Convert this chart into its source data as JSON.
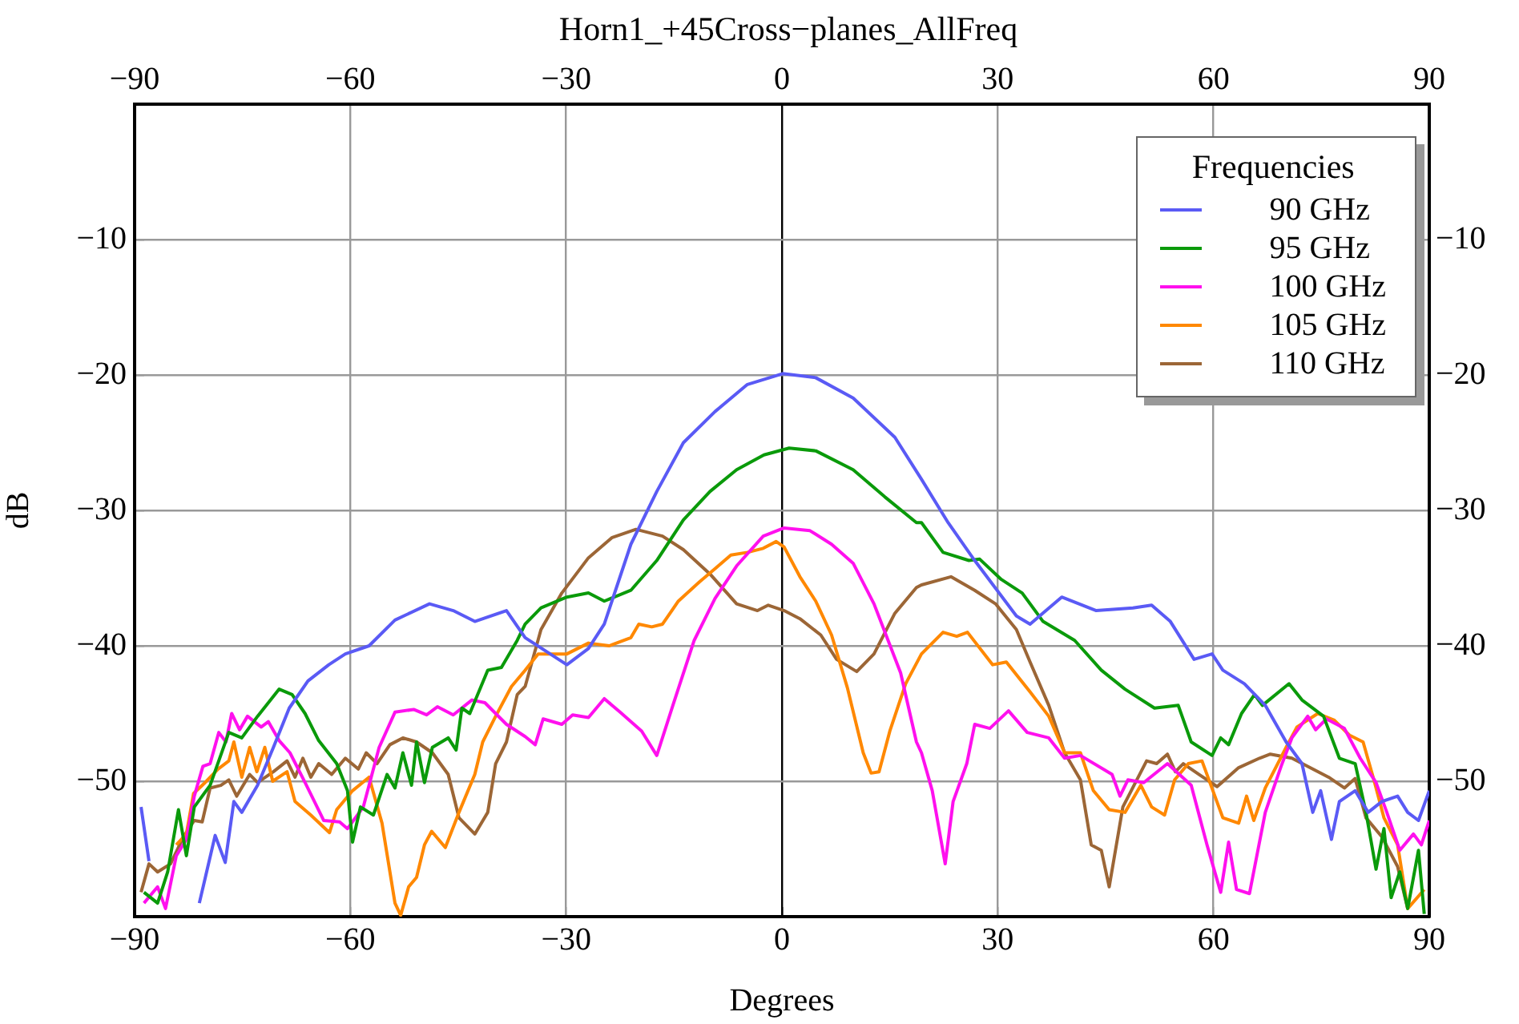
{
  "chart_data": {
    "type": "line",
    "title": "Horn1_+45Cross−planes_AllFreq",
    "xlabel": "Degrees",
    "ylabel": "dB",
    "legend_title": "Frequencies",
    "legend": "top right",
    "grid": true,
    "marker": "none",
    "xlim": [
      -90,
      90
    ],
    "xticks": [
      -90,
      -60,
      -30,
      0,
      30,
      60,
      90
    ],
    "x2lim": [
      -90,
      90
    ],
    "x2ticks": [
      -90,
      -60,
      -30,
      0,
      30,
      60,
      90
    ],
    "ylim": [
      -60,
      0
    ],
    "yticks": [
      -50,
      -40,
      -30,
      -20,
      -10
    ],
    "y2lim": [
      -60,
      0
    ],
    "y2ticks": [
      -50,
      -40,
      -30,
      -20,
      -10
    ],
    "series": [
      {
        "name": "90 GHz",
        "color": "#5a5af5",
        "x": [
          -89.1,
          -88.0,
          -85.0,
          -81.0,
          -78.8,
          -77.4,
          -76.2,
          -75.1,
          -72.9,
          -70.7,
          -68.5,
          -65.9,
          -63.0,
          -60.7,
          -57.4,
          -53.8,
          -49.0,
          -45.7,
          -42.7,
          -38.3,
          -35.7,
          -29.9,
          -26.9,
          -24.7,
          -21.0,
          -17.4,
          -13.7,
          -9.3,
          -4.8,
          0.1,
          4.7,
          9.9,
          15.7,
          19.4,
          23.1,
          26.8,
          32.6,
          34.5,
          38.9,
          43.7,
          48.8,
          51.4,
          54.0,
          57.3,
          59.8,
          61.3,
          64.3,
          67.2,
          70.1,
          72.3,
          73.8,
          74.9,
          76.4,
          77.5,
          79.7,
          81.5,
          83.4,
          85.6,
          87.0,
          88.5,
          90
        ],
        "values": [
          -51.9,
          -55.9,
          null,
          -59,
          -54,
          -56,
          -51.5,
          -52.3,
          -50.3,
          -47.5,
          -44.6,
          -42.6,
          -41.4,
          -40.6,
          -40,
          -38.1,
          -36.9,
          -37.4,
          -38.2,
          -37.4,
          -39.4,
          -41.4,
          -40.2,
          -38.4,
          -32.5,
          -28.6,
          -25,
          -22.7,
          -20.7,
          -19.9,
          -20.2,
          -21.7,
          -24.6,
          -27.7,
          -30.9,
          -33.7,
          -37.8,
          -38.4,
          -36.4,
          -37.4,
          -37.2,
          -37.0,
          -38.2,
          -41,
          -40.6,
          -41.8,
          -42.8,
          -44.4,
          -47.1,
          -48.7,
          -52.3,
          -50.7,
          -54.3,
          -51.5,
          -50.7,
          -52.3,
          -51.5,
          -51.1,
          -52.3,
          -52.9,
          -50.7
        ]
      },
      {
        "name": "95 GHz",
        "color": "#0a9a0a",
        "x": [
          -88.7,
          -86.8,
          -85.4,
          -83.9,
          -82.8,
          -81.7,
          -79.5,
          -76.9,
          -75.1,
          -72.9,
          -69.9,
          -68.1,
          -66.3,
          -64.4,
          -61.9,
          -60.4,
          -59.7,
          -58.6,
          -56.8,
          -54.9,
          -53.8,
          -52.7,
          -51.5,
          -50.8,
          -49.7,
          -48.6,
          -46.4,
          -45.3,
          -44.5,
          -43.4,
          -40.9,
          -39.0,
          -36.8,
          -35.7,
          -33.5,
          -29.9,
          -26.9,
          -24.7,
          -21.0,
          -17.4,
          -13.7,
          -10.0,
          -6.3,
          -2.5,
          1.0,
          4.7,
          9.9,
          14.3,
          18.7,
          19.4,
          22.4,
          26.0,
          27.5,
          30.5,
          33.4,
          36.3,
          40.7,
          44.4,
          47.7,
          51.8,
          55.1,
          56.9,
          59.8,
          61.0,
          62.1,
          63.9,
          65.7,
          66.8,
          70.5,
          72.3,
          75.3,
          77.5,
          79.7,
          81.2,
          82.6,
          83.7,
          84.7,
          85.9,
          87.0,
          88.5,
          89.3
        ],
        "values": [
          -58.2,
          -59,
          -56.7,
          -52.1,
          -55.5,
          -51.9,
          -50.3,
          -46.4,
          -46.8,
          -45.2,
          -43.2,
          -43.6,
          -45,
          -47,
          -48.7,
          -50.7,
          -54.5,
          -51.9,
          -52.5,
          -49.5,
          -50.5,
          -47.9,
          -50.3,
          -47.1,
          -50.1,
          -47.5,
          -46.8,
          -47.7,
          -44.6,
          -45,
          -41.8,
          -41.6,
          -39.6,
          -38.4,
          -37.2,
          -36.4,
          -36.1,
          -36.7,
          -35.9,
          -33.7,
          -30.7,
          -28.6,
          -27.0,
          -25.9,
          -25.4,
          -25.6,
          -27.0,
          -29,
          -30.9,
          -30.9,
          -33.1,
          -33.7,
          -33.6,
          -35.1,
          -36.1,
          -38.2,
          -39.6,
          -41.8,
          -43.2,
          -44.6,
          -44.4,
          -47.1,
          -48.1,
          -46.8,
          -47.3,
          -45,
          -43.6,
          -44.4,
          -42.8,
          -44,
          -45.2,
          -48.3,
          -48.7,
          -52.3,
          -56.5,
          -53.5,
          -58.6,
          -56.7,
          -59.4,
          -55.1,
          -59.8
        ]
      },
      {
        "name": "100 GHz",
        "color": "#ff10ee",
        "x": [
          -88.7,
          -86.8,
          -85.7,
          -84.2,
          -82.8,
          -81.7,
          -80.5,
          -79.5,
          -78.3,
          -77.3,
          -76.5,
          -75.4,
          -74.3,
          -72.4,
          -71.4,
          -69.9,
          -68.4,
          -66.3,
          -63.7,
          -61.5,
          -60.4,
          -58.2,
          -56.0,
          -53.8,
          -51.2,
          -49.4,
          -47.9,
          -45.7,
          -43.1,
          -41.3,
          -38.3,
          -35.7,
          -34.3,
          -33.2,
          -30.6,
          -29.1,
          -26.9,
          -24.7,
          -22.5,
          -19.5,
          -17.4,
          -15.1,
          -12.2,
          -9.3,
          -6.3,
          -2.6,
          0.3,
          3.9,
          6.9,
          9.9,
          12.8,
          16.5,
          18.7,
          19.4,
          20.9,
          22.7,
          23.8,
          25.7,
          26.8,
          28.9,
          31.5,
          34.1,
          37.1,
          39.3,
          41.5,
          45.9,
          47.0,
          48.1,
          50.3,
          53.6,
          56.9,
          59.1,
          61.0,
          62.1,
          63.2,
          65.0,
          67.2,
          69.4,
          70.9,
          73.1,
          74.2,
          75.7,
          78.2,
          80.4,
          82.6,
          84.1,
          85.9,
          87.8,
          88.9,
          90
        ],
        "values": [
          -59,
          -57.8,
          -59.4,
          -55.5,
          -54.3,
          -51.1,
          -48.9,
          -48.7,
          -46.4,
          -47.1,
          -45,
          -46.2,
          -45.2,
          -46,
          -45.6,
          -47,
          -47.9,
          -50.1,
          -52.9,
          -53,
          -53.5,
          -51.9,
          -47.5,
          -44.9,
          -44.7,
          -45.1,
          -44.5,
          -45.1,
          -44.0,
          -44.2,
          -45.8,
          -46.7,
          -47.3,
          -45.4,
          -45.8,
          -45.1,
          -45.3,
          -43.9,
          -44.9,
          -46.3,
          -48.1,
          -44.3,
          -39.6,
          -36.5,
          -34.1,
          -31.9,
          -31.3,
          -31.5,
          -32.5,
          -33.9,
          -36.9,
          -42,
          -47.1,
          -47.9,
          -50.7,
          -56.1,
          -51.5,
          -48.7,
          -45.8,
          -46.1,
          -44.8,
          -46.4,
          -46.8,
          -48.3,
          -48.1,
          -49.5,
          -51.1,
          -49.9,
          -50.1,
          -48.7,
          -50.3,
          -54.7,
          -58.2,
          -54.5,
          -58.0,
          -58.3,
          -52.3,
          -48.9,
          -46.8,
          -45.2,
          -46.2,
          -45.4,
          -46.1,
          -48.3,
          -50.1,
          -52.3,
          -55.1,
          -53.9,
          -54.7,
          -52.9
        ]
      },
      {
        "name": "105 GHz",
        "color": "#ff8800",
        "x": [
          -84.2,
          -82.8,
          -81.8,
          -80.2,
          -78.4,
          -76.9,
          -76.2,
          -75.1,
          -74.0,
          -73.0,
          -71.9,
          -70.8,
          -68.8,
          -67.7,
          -65.5,
          -62.9,
          -61.9,
          -59.7,
          -57.4,
          -55.6,
          -53.8,
          -53.0,
          -51.9,
          -50.8,
          -49.7,
          -48.7,
          -46.8,
          -44.9,
          -42.7,
          -41.6,
          -39.8,
          -37.6,
          -35.7,
          -33.9,
          -29.9,
          -26.9,
          -24.0,
          -21.0,
          -19.9,
          -18.1,
          -16.6,
          -14.4,
          -11.5,
          -9.3,
          -7.1,
          -4.8,
          -2.6,
          -0.8,
          0.3,
          2.5,
          4.7,
          6.9,
          9.1,
          11.3,
          12.4,
          13.5,
          15.0,
          17.2,
          19.4,
          22.4,
          24.3,
          25.8,
          29.3,
          31.2,
          34.5,
          37.1,
          39.3,
          41.5,
          43.3,
          45.5,
          47.7,
          49.9,
          51.4,
          53.2,
          54.6,
          56.5,
          58.4,
          61.3,
          63.5,
          64.6,
          65.6,
          67.2,
          70.1,
          71.6,
          74.5,
          76.8,
          78.9,
          80.8,
          82.3,
          83.7,
          85.6,
          87.0,
          89.3
        ],
        "values": [
          -54.7,
          -53.9,
          -50.9,
          -50.1,
          -49.1,
          -48.5,
          -47.1,
          -49.7,
          -47.5,
          -49.3,
          -47.5,
          -50.0,
          -49.3,
          -51.5,
          -52.5,
          -53.8,
          -52.1,
          -50.7,
          -49.7,
          -53.1,
          -59.0,
          -59.9,
          -57.8,
          -57.1,
          -54.7,
          -53.7,
          -54.9,
          -52.3,
          -49.5,
          -47.1,
          -45.2,
          -43.0,
          -41.8,
          -40.6,
          -40.6,
          -39.8,
          -40.0,
          -39.4,
          -38.4,
          -38.6,
          -38.4,
          -36.7,
          -35.3,
          -34.3,
          -33.3,
          -33.1,
          -32.8,
          -32.3,
          -32.7,
          -34.9,
          -36.7,
          -39.2,
          -43.1,
          -47.9,
          -49.4,
          -49.3,
          -46.3,
          -42.8,
          -40.6,
          -39.0,
          -39.3,
          -39.0,
          -41.4,
          -41.2,
          -43.4,
          -45.2,
          -47.9,
          -47.9,
          -50.7,
          -52.1,
          -52.3,
          -50.3,
          -51.9,
          -52.5,
          -49.9,
          -48.7,
          -48.5,
          -52.7,
          -53.1,
          -51.1,
          -52.9,
          -50.5,
          -47.5,
          -46.0,
          -45.0,
          -45.5,
          -46.6,
          -47.1,
          -49.9,
          -52.7,
          -54.7,
          -59.4,
          -58
        ]
      },
      {
        "name": "110 GHz",
        "color": "#9c6636",
        "x": [
          -89.1,
          -88.0,
          -86.8,
          -85.0,
          -83.2,
          -81.7,
          -80.6,
          -79.5,
          -78.0,
          -76.9,
          -75.8,
          -74.0,
          -72.9,
          -70.7,
          -68.8,
          -67.7,
          -66.6,
          -65.5,
          -64.4,
          -62.6,
          -60.7,
          -58.9,
          -57.8,
          -56.3,
          -54.5,
          -52.7,
          -50.8,
          -48.6,
          -46.4,
          -44.9,
          -42.7,
          -40.9,
          -39.8,
          -38.3,
          -36.8,
          -35.7,
          -33.5,
          -30.6,
          -26.9,
          -23.6,
          -20.3,
          -16.6,
          -13.7,
          -10.0,
          -6.3,
          -3.4,
          -1.9,
          0.3,
          2.5,
          5.4,
          7.6,
          10.4,
          12.8,
          15.7,
          18.7,
          19.4,
          23.5,
          26.8,
          29.7,
          32.6,
          34.5,
          37.1,
          39.3,
          41.5,
          43.0,
          44.4,
          45.5,
          47.4,
          50.7,
          52.1,
          53.6,
          54.7,
          55.8,
          58.0,
          60.5,
          63.5,
          66.4,
          67.9,
          70.9,
          73.8,
          76.0,
          78.2,
          79.7,
          81.2,
          83.4,
          85.6,
          87.0
        ],
        "values": [
          -58.2,
          -56.1,
          -56.7,
          -56.1,
          -54.1,
          -52.9,
          -53.0,
          -50.5,
          -50.3,
          -49.9,
          -51.1,
          -49.5,
          -50.1,
          -49.3,
          -48.5,
          -49.7,
          -48.3,
          -49.7,
          -48.7,
          -49.5,
          -48.3,
          -49.1,
          -47.9,
          -48.7,
          -47.3,
          -46.8,
          -47.1,
          -47.9,
          -49.5,
          -52.7,
          -53.9,
          -52.3,
          -48.7,
          -47.1,
          -43.6,
          -43.0,
          -38.8,
          -36.1,
          -33.5,
          -32.0,
          -31.4,
          -31.9,
          -32.9,
          -34.7,
          -36.9,
          -37.4,
          -37.0,
          -37.4,
          -38.0,
          -39.2,
          -41.0,
          -41.9,
          -40.6,
          -37.6,
          -35.7,
          -35.5,
          -34.9,
          -35.9,
          -36.9,
          -38.8,
          -41.2,
          -44.4,
          -47.9,
          -49.9,
          -54.7,
          -55.1,
          -57.8,
          -51.9,
          -48.5,
          -48.7,
          -48.0,
          -49.3,
          -48.7,
          -49.5,
          -50.4,
          -49.0,
          -48.3,
          -48.0,
          -48.3,
          -49.1,
          -49.7,
          -50.5,
          -49.8,
          -52.7,
          -54.1,
          -56.3,
          -59.4
        ]
      }
    ]
  }
}
